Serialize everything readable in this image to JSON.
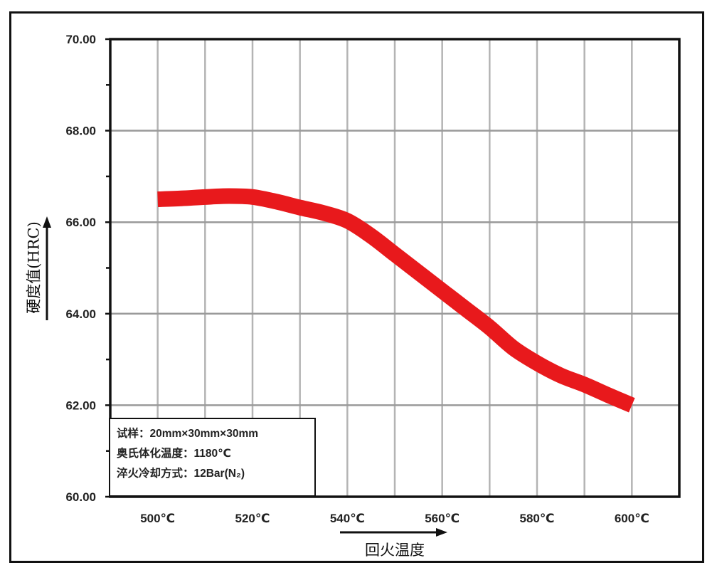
{
  "chart_data": {
    "type": "line",
    "title": "",
    "xlabel": "回火温度",
    "ylabel": "硬度值(HRC)",
    "x_unit": "℃",
    "xlim": [
      490,
      610
    ],
    "ylim": [
      60,
      70
    ],
    "x_ticks": [
      500,
      520,
      540,
      560,
      580,
      600
    ],
    "x_tick_labels": [
      "500℃",
      "520℃",
      "540℃",
      "560℃",
      "580℃",
      "600℃"
    ],
    "y_ticks": [
      60,
      62,
      64,
      66,
      68,
      70
    ],
    "y_tick_labels": [
      "60.00",
      "62.00",
      "64.00",
      "66.00",
      "68.00",
      "70.00"
    ],
    "y_minor_ticks": [
      61,
      63,
      65,
      67,
      69
    ],
    "x_grid": [
      490,
      500,
      510,
      520,
      530,
      540,
      550,
      560,
      570,
      580,
      590,
      600,
      610
    ],
    "grid": true,
    "series": [
      {
        "name": "硬度值",
        "color": "#e8191c",
        "x": [
          500,
          505,
          510,
          515,
          520,
          525,
          530,
          535,
          540,
          545,
          550,
          555,
          560,
          565,
          570,
          575,
          580,
          585,
          590,
          595,
          600
        ],
        "values": [
          66.5,
          66.52,
          66.55,
          66.57,
          66.55,
          66.45,
          66.32,
          66.2,
          66.03,
          65.7,
          65.3,
          64.9,
          64.5,
          64.1,
          63.7,
          63.25,
          62.92,
          62.65,
          62.45,
          62.22,
          62.0
        ]
      }
    ],
    "legend_position": "lower-left",
    "annotations": [
      "试样：20mm×30mm×30mm",
      "奥氏体化温度：1180℃",
      "淬火冷却方式：12Bar(N₂)"
    ]
  },
  "legend": {
    "line1": "试样：20mm×30mm×30mm",
    "line2": "奥氏体化温度：1180℃",
    "line3": "淬火冷却方式：12Bar(N₂)"
  },
  "axes": {
    "xlabel": "回火温度",
    "ylabel": "硬度值(HRC)"
  }
}
